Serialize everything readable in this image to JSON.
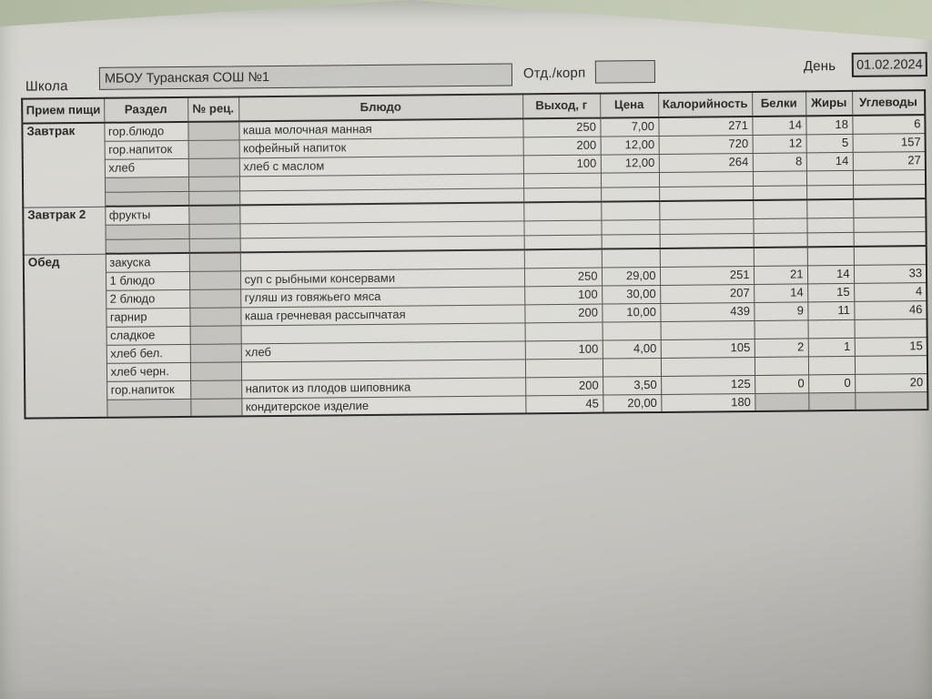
{
  "page": {
    "school_label": "Школа",
    "school_name": "МБОУ Туранская СОШ №1",
    "dept_label": "Отд./корп",
    "dept_value": "",
    "day_label": "День",
    "date": "01.02.2024"
  },
  "colors": {
    "background_green": "#b9c0aa",
    "paper": "#cdccc7",
    "cell_light": "#dad9d4",
    "cell_shaded": "#c0bfba",
    "ink": "#23221e"
  },
  "table": {
    "headers": [
      "Прием пищи",
      "Раздел",
      "№ рец.",
      "Блюдо",
      "Выход, г",
      "Цена",
      "Калорийность",
      "Белки",
      "Жиры",
      "Углеводы"
    ],
    "sections": [
      {
        "meal": "Завтрак",
        "rows": [
          {
            "razdel": "гор.блюдо",
            "rec": "",
            "dish": "каша молочная манная",
            "out": "250",
            "price": "7,00",
            "kcal": "271",
            "protein": "14",
            "fat": "18",
            "carbs": "6"
          },
          {
            "razdel": "гор.напиток",
            "rec": "",
            "dish": "кофейный напиток",
            "out": "200",
            "price": "12,00",
            "kcal": "720",
            "protein": "12",
            "fat": "5",
            "carbs": "157"
          },
          {
            "razdel": "хлеб",
            "rec": "",
            "dish": "хлеб с маслом",
            "out": "100",
            "price": "12,00",
            "kcal": "264",
            "protein": "8",
            "fat": "14",
            "carbs": "27"
          },
          {
            "razdel": "",
            "rec": "",
            "dish": "",
            "out": "",
            "price": "",
            "kcal": "",
            "protein": "",
            "fat": "",
            "carbs": ""
          },
          {
            "razdel": "",
            "rec": "",
            "dish": "",
            "out": "",
            "price": "",
            "kcal": "",
            "protein": "",
            "fat": "",
            "carbs": ""
          }
        ]
      },
      {
        "meal": "Завтрак 2",
        "rows": [
          {
            "razdel": "фрукты",
            "rec": "",
            "dish": "",
            "out": "",
            "price": "",
            "kcal": "",
            "protein": "",
            "fat": "",
            "carbs": ""
          },
          {
            "razdel": "",
            "rec": "",
            "dish": "",
            "out": "",
            "price": "",
            "kcal": "",
            "protein": "",
            "fat": "",
            "carbs": ""
          },
          {
            "razdel": "",
            "rec": "",
            "dish": "",
            "out": "",
            "price": "",
            "kcal": "",
            "protein": "",
            "fat": "",
            "carbs": ""
          }
        ]
      },
      {
        "meal": "Обед",
        "rows": [
          {
            "razdel": "закуска",
            "rec": "",
            "dish": "",
            "out": "",
            "price": "",
            "kcal": "",
            "protein": "",
            "fat": "",
            "carbs": ""
          },
          {
            "razdel": "1 блюдо",
            "rec": "",
            "dish": "суп с рыбными консервами",
            "out": "250",
            "price": "29,00",
            "kcal": "251",
            "protein": "21",
            "fat": "14",
            "carbs": "33"
          },
          {
            "razdel": "2 блюдо",
            "rec": "",
            "dish": "гуляш из говяжьего мяса",
            "out": "100",
            "price": "30,00",
            "kcal": "207",
            "protein": "14",
            "fat": "15",
            "carbs": "4"
          },
          {
            "razdel": "гарнир",
            "rec": "",
            "dish": "каша гречневая рассыпчатая",
            "out": "200",
            "price": "10,00",
            "kcal": "439",
            "protein": "9",
            "fat": "11",
            "carbs": "46"
          },
          {
            "razdel": "сладкое",
            "rec": "",
            "dish": "",
            "out": "",
            "price": "",
            "kcal": "",
            "protein": "",
            "fat": "",
            "carbs": ""
          },
          {
            "razdel": "хлеб бел.",
            "rec": "",
            "dish": "хлеб",
            "out": "100",
            "price": "4,00",
            "kcal": "105",
            "protein": "2",
            "fat": "1",
            "carbs": "15"
          },
          {
            "razdel": "хлеб черн.",
            "rec": "",
            "dish": "",
            "out": "",
            "price": "",
            "kcal": "",
            "protein": "",
            "fat": "",
            "carbs": ""
          },
          {
            "razdel": "гор.напиток",
            "rec": "",
            "dish": "напиток из плодов шиповника",
            "out": "200",
            "price": "3,50",
            "kcal": "125",
            "protein": "0",
            "fat": "0",
            "carbs": "20"
          },
          {
            "razdel": "",
            "rec": "",
            "dish": "кондитерское изделие",
            "out": "45",
            "price": "20,00",
            "kcal": "180",
            "protein": "",
            "fat": "",
            "carbs": ""
          }
        ]
      }
    ]
  }
}
